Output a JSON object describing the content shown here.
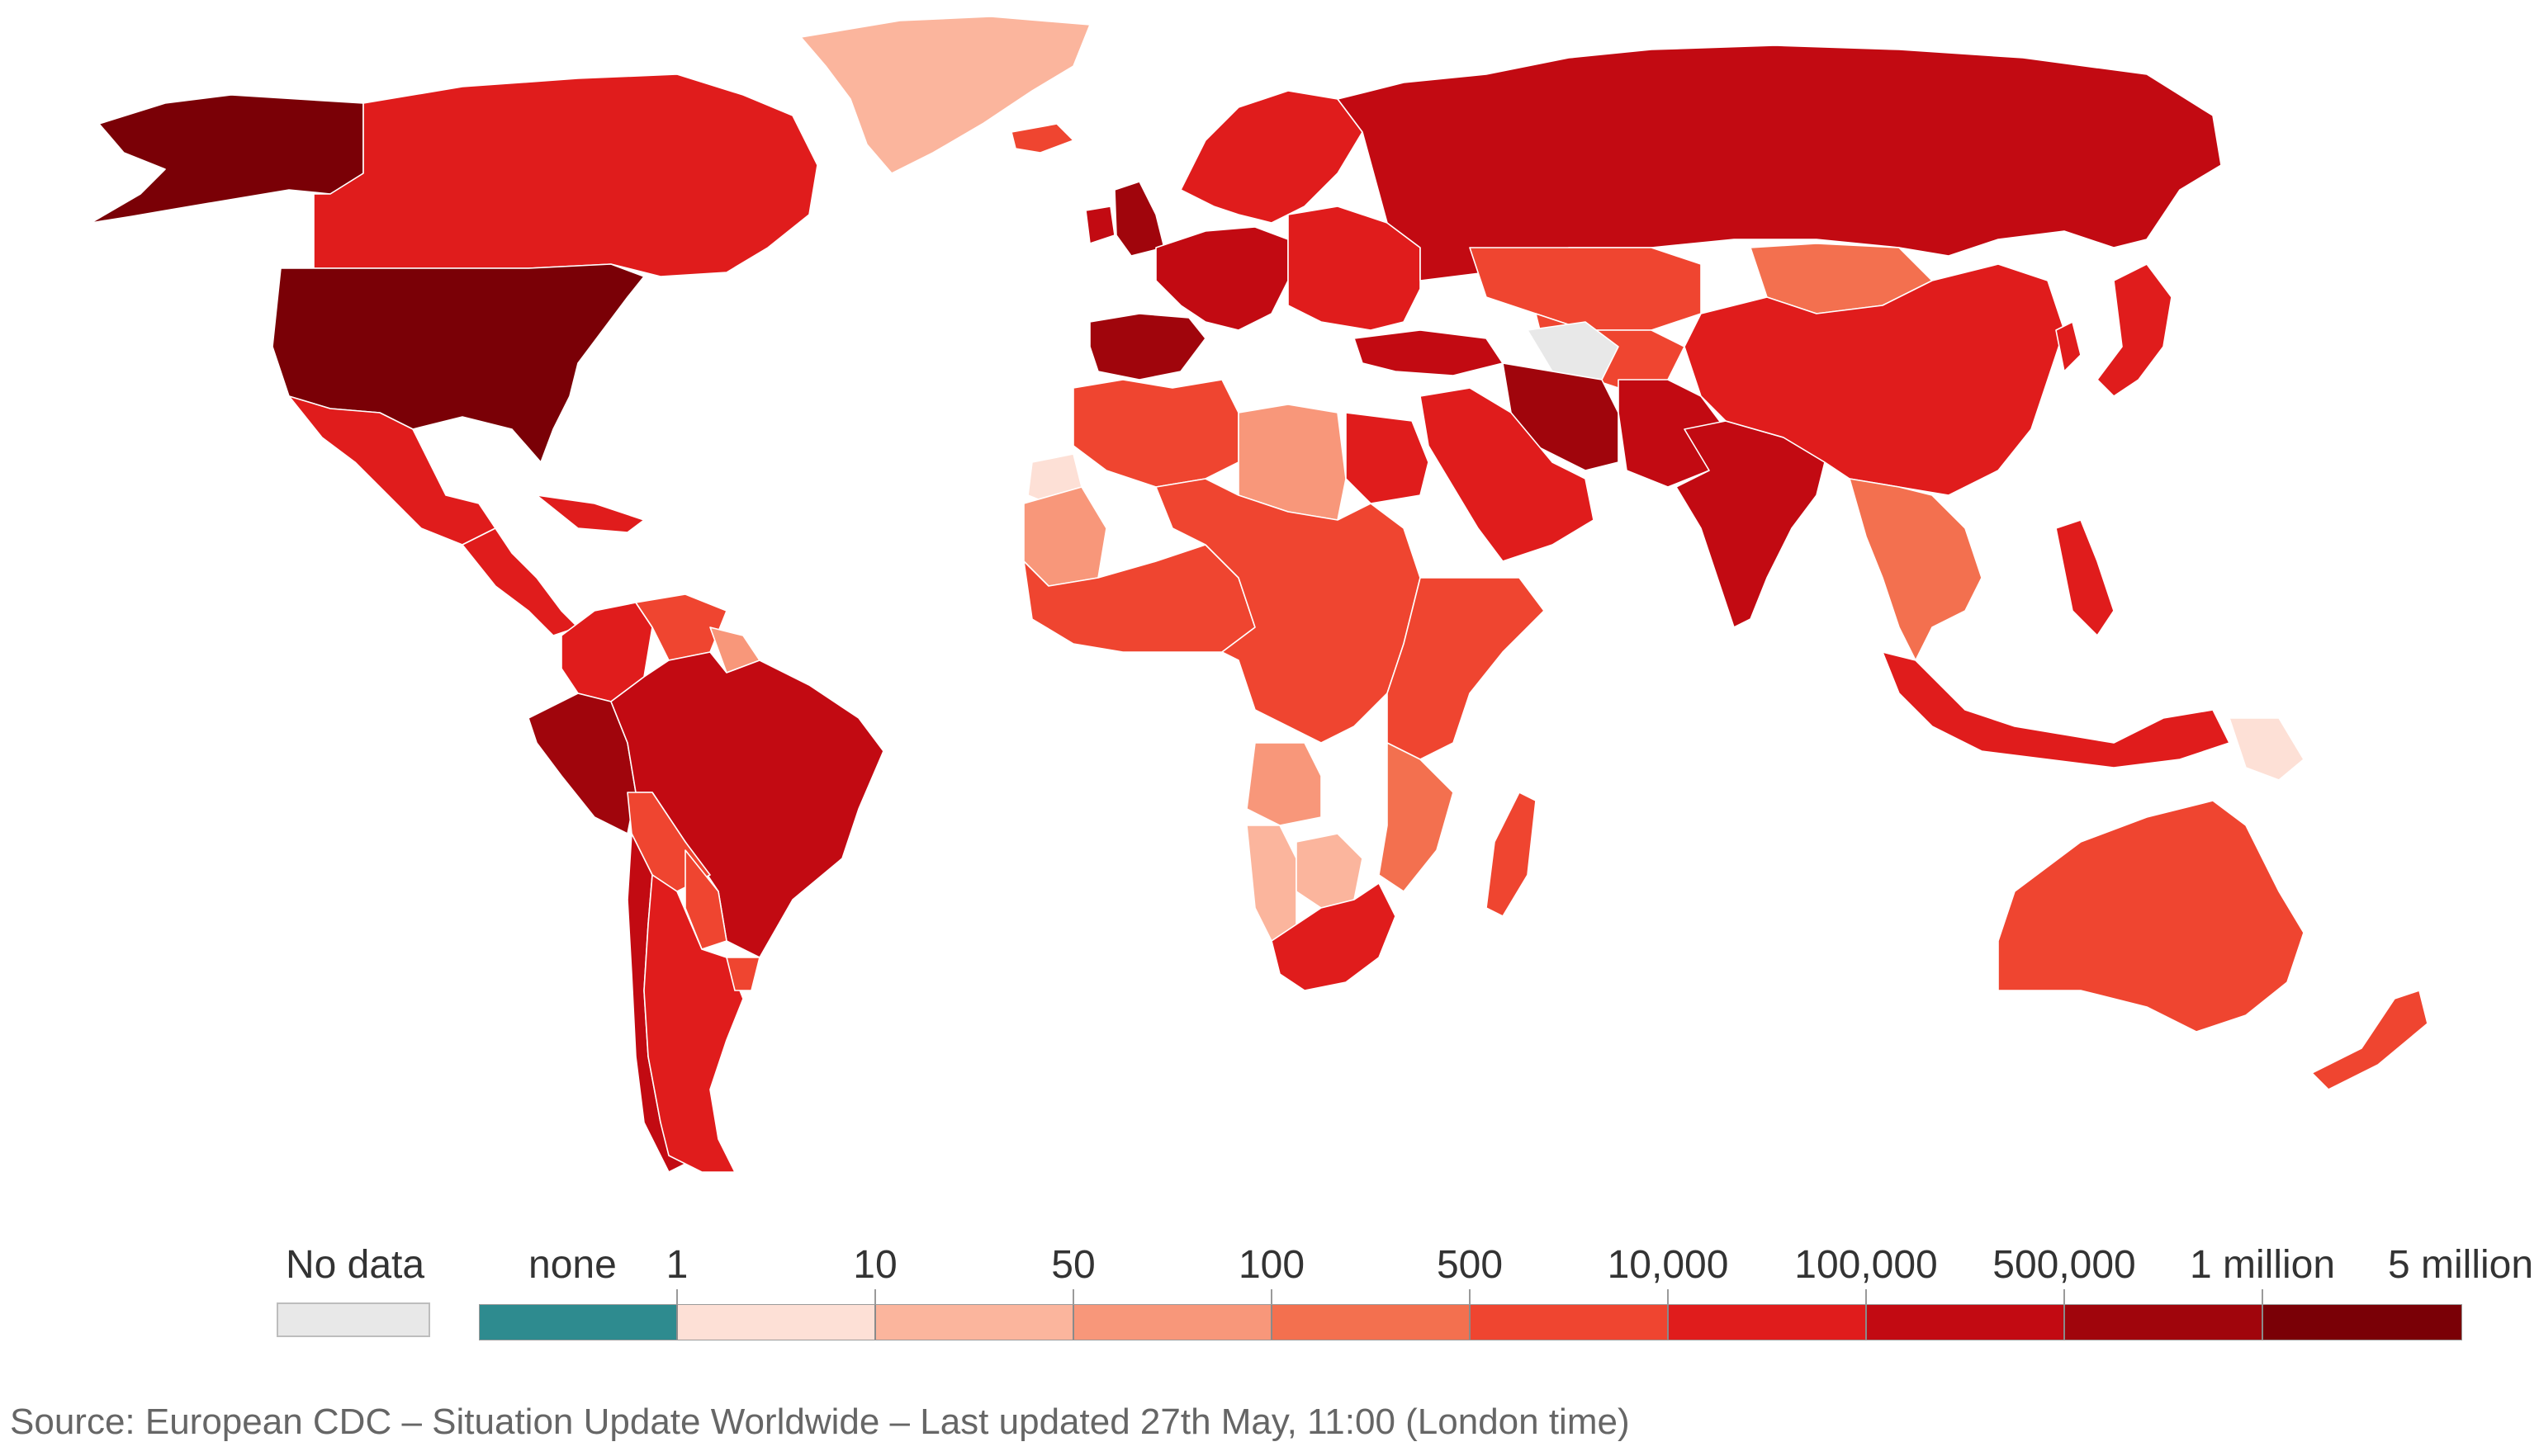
{
  "legend": {
    "no_data_label": "No data",
    "no_data_color": "#e8e8e8",
    "scale_labels": [
      "none",
      "1",
      "10",
      "50",
      "100",
      "500",
      "10,000",
      "100,000",
      "500,000",
      "1 million",
      "5 million"
    ],
    "scale_colors": [
      "#2e8b8f",
      "#fde0d6",
      "#fbb59d",
      "#f8977a",
      "#f3704f",
      "#ef4530",
      "#e01c1c",
      "#c20a12",
      "#a0050c",
      "#7a0006"
    ]
  },
  "source_text": "Source: European CDC – Situation Update Worldwide – Last updated 27th May, 11:00 (London time)",
  "regions": [
    {
      "name": "Alaska",
      "color": "#7a0006"
    },
    {
      "name": "Canada",
      "color": "#e01c1c"
    },
    {
      "name": "Greenland",
      "color": "#fbb59d"
    },
    {
      "name": "United States",
      "color": "#7a0006"
    },
    {
      "name": "Mexico",
      "color": "#e01c1c"
    },
    {
      "name": "Central America",
      "color": "#e01c1c"
    },
    {
      "name": "Caribbean",
      "color": "#e01c1c"
    },
    {
      "name": "Colombia",
      "color": "#e01c1c"
    },
    {
      "name": "Venezuela",
      "color": "#ef4530"
    },
    {
      "name": "Guyana",
      "color": "#f8977a"
    },
    {
      "name": "Peru",
      "color": "#a0050c"
    },
    {
      "name": "Brazil",
      "color": "#c20a12"
    },
    {
      "name": "Bolivia",
      "color": "#ef4530"
    },
    {
      "name": "Paraguay",
      "color": "#ef4530"
    },
    {
      "name": "Chile",
      "color": "#c20a12"
    },
    {
      "name": "Argentina",
      "color": "#e01c1c"
    },
    {
      "name": "Uruguay",
      "color": "#ef4530"
    },
    {
      "name": "Iceland",
      "color": "#ef4530"
    },
    {
      "name": "United Kingdom",
      "color": "#a0050c"
    },
    {
      "name": "Ireland",
      "color": "#c20a12"
    },
    {
      "name": "Scandinavia",
      "color": "#e01c1c"
    },
    {
      "name": "Spain and Portugal",
      "color": "#a0050c"
    },
    {
      "name": "Western Europe",
      "color": "#c20a12"
    },
    {
      "name": "Eastern Europe",
      "color": "#e01c1c"
    },
    {
      "name": "Russia",
      "color": "#c20a12"
    },
    {
      "name": "Turkey",
      "color": "#c20a12"
    },
    {
      "name": "Kazakhstan",
      "color": "#ef4530"
    },
    {
      "name": "Mongolia",
      "color": "#f3704f"
    },
    {
      "name": "Central Asia",
      "color": "#ef4530"
    },
    {
      "name": "Iran",
      "color": "#a0050c"
    },
    {
      "name": "Arabian Peninsula",
      "color": "#e01c1c"
    },
    {
      "name": "Pakistan and Afghanistan",
      "color": "#c20a12"
    },
    {
      "name": "India",
      "color": "#c20a12"
    },
    {
      "name": "China",
      "color": "#e01c1c"
    },
    {
      "name": "Southeast Asia",
      "color": "#f3704f"
    },
    {
      "name": "Japan",
      "color": "#e01c1c"
    },
    {
      "name": "Korea",
      "color": "#e01c1c"
    },
    {
      "name": "Philippines",
      "color": "#e01c1c"
    },
    {
      "name": "Indonesia",
      "color": "#e01c1c"
    },
    {
      "name": "Papua New Guinea",
      "color": "#fde0d6"
    },
    {
      "name": "Australia",
      "color": "#ef4530"
    },
    {
      "name": "New Zealand",
      "color": "#ef4530"
    },
    {
      "name": "North Africa",
      "color": "#ef4530"
    },
    {
      "name": "Libya",
      "color": "#f8977a"
    },
    {
      "name": "Egypt",
      "color": "#e01c1c"
    },
    {
      "name": "West Africa",
      "color": "#ef4530"
    },
    {
      "name": "Mauritania",
      "color": "#f8977a"
    },
    {
      "name": "Western Sahara",
      "color": "#fde0d6"
    },
    {
      "name": "Central Africa",
      "color": "#ef4530"
    },
    {
      "name": "East Africa",
      "color": "#ef4530"
    },
    {
      "name": "Angola",
      "color": "#f8977a"
    },
    {
      "name": "Namibia",
      "color": "#fbb59d"
    },
    {
      "name": "Botswana",
      "color": "#fbb59d"
    },
    {
      "name": "South Africa",
      "color": "#e01c1c"
    },
    {
      "name": "Madagascar",
      "color": "#ef4530"
    },
    {
      "name": "Mozambique",
      "color": "#f3704f"
    },
    {
      "name": "No data region",
      "color": "#e8e8e8"
    }
  ]
}
